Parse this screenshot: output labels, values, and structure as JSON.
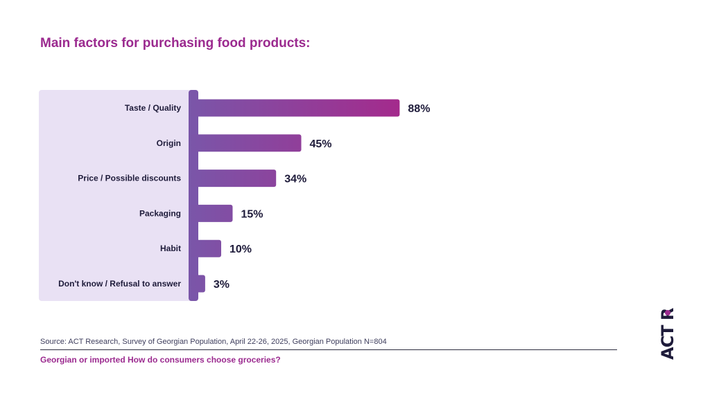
{
  "title": "Main factors for purchasing food products:",
  "chart_data": {
    "type": "bar",
    "orientation": "horizontal",
    "categories": [
      "Taste / Quality",
      "Origin",
      "Price / Possible discounts",
      "Packaging",
      "Habit",
      "Don't know / Refusal to answer"
    ],
    "values": [
      88,
      45,
      34,
      15,
      10,
      3
    ],
    "value_labels": [
      "88%",
      "45%",
      "34%",
      "15%",
      "10%",
      "3%"
    ],
    "xlim": [
      0,
      100
    ]
  },
  "footer": {
    "source": "Source: ACT Research, Survey of Georgian Population, April 22-26, 2025, Georgian Population N=804",
    "subtitle": "Georgian or imported How do consumers choose groceries?"
  },
  "logo": {
    "text": "ACT R"
  },
  "colors": {
    "title": "#9b2a8f",
    "label_panel": "#e9e1f4",
    "bar_start": "#7a56a9",
    "bar_end": "#a42a8c",
    "text_dark": "#1e1b3a"
  }
}
